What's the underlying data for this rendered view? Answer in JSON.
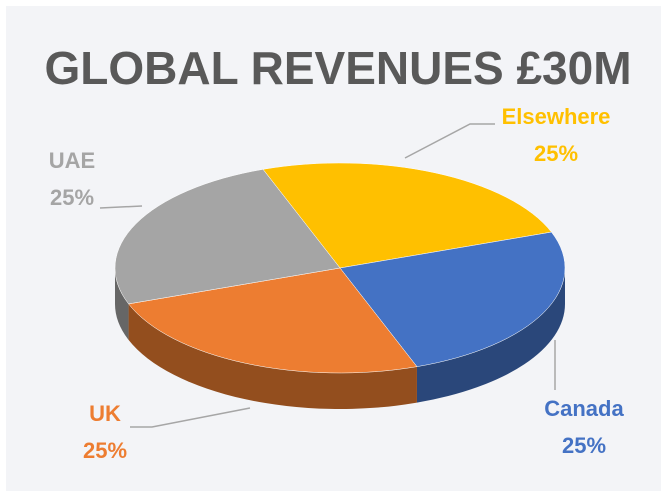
{
  "chart_data": {
    "type": "pie",
    "title": "GLOBAL REVENUES £30M",
    "categories": [
      "Elsewhere",
      "Canada",
      "UK",
      "UAE"
    ],
    "values": [
      25,
      25,
      25,
      25
    ],
    "value_labels": [
      "25%",
      "25%",
      "25%",
      "25%"
    ],
    "colors": [
      "#ffc000",
      "#4472c4",
      "#ed7d31",
      "#a5a5a5"
    ]
  }
}
